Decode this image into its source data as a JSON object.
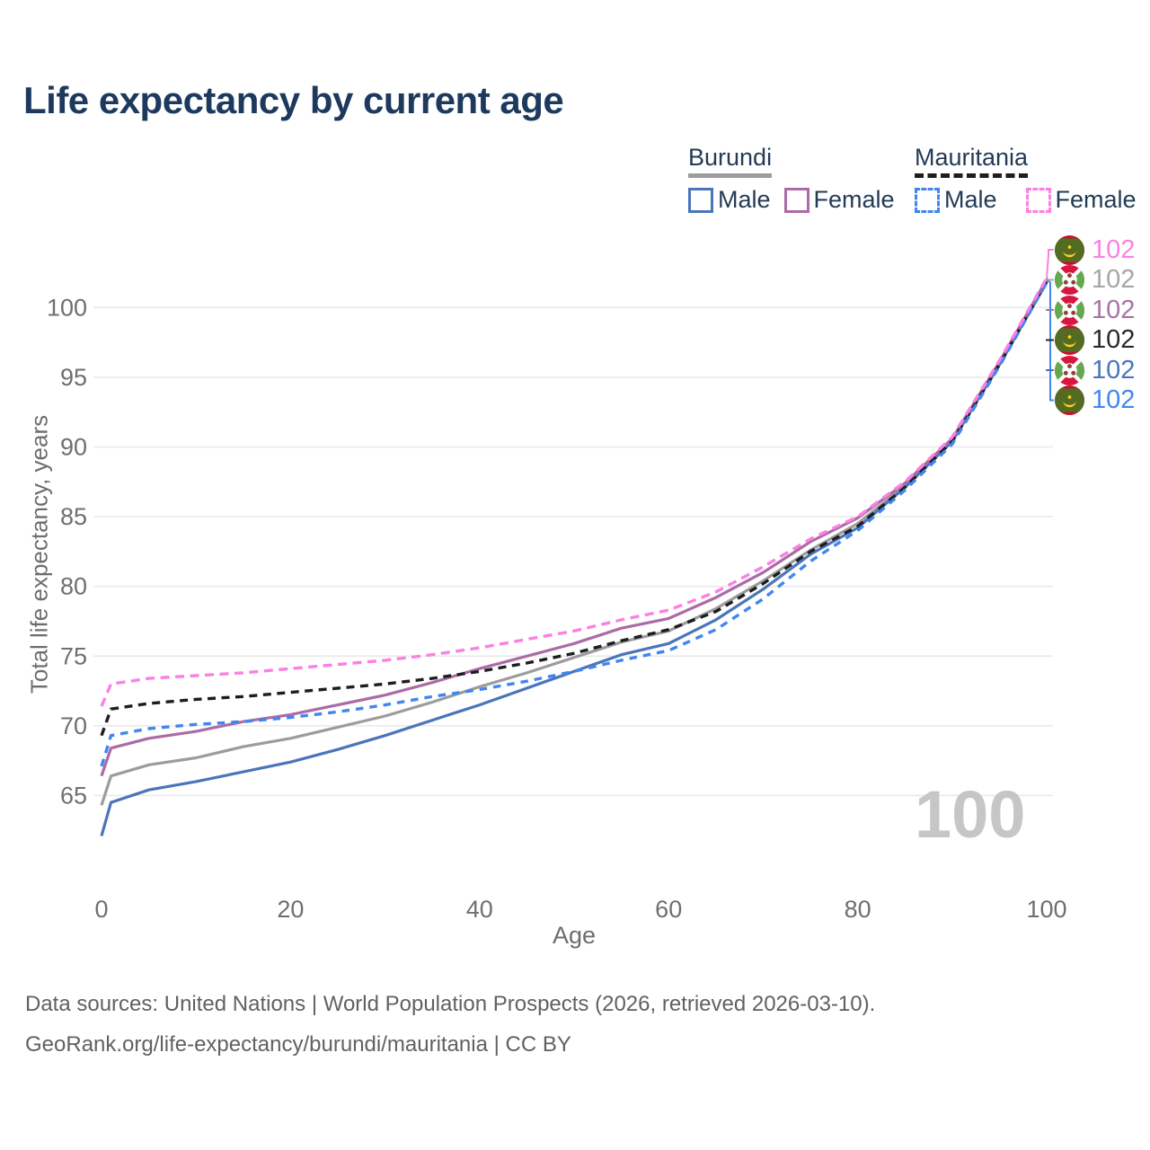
{
  "title": "Life expectancy by current age",
  "watermark_age": "100",
  "legend": {
    "groups": [
      {
        "label": "Burundi",
        "underline_style": "solid",
        "underline_color": "#9c9c9c",
        "items": [
          {
            "label": "Male",
            "color": "#4a75ba",
            "style": "solid"
          },
          {
            "label": "Female",
            "color": "#ac6ba6",
            "style": "solid"
          }
        ]
      },
      {
        "label": "Mauritania",
        "underline_style": "dashed",
        "underline_color": "#1e1e1e",
        "items": [
          {
            "label": "Male",
            "color": "#4186f0",
            "style": "dashed"
          },
          {
            "label": "Female",
            "color": "#fa81e3",
            "style": "dashed"
          }
        ]
      }
    ]
  },
  "right_labels": [
    {
      "series": "Mauritania Female",
      "flag_icon": "mauritania",
      "value": "102",
      "color": "#fa81e3"
    },
    {
      "series": "Burundi Both sexes",
      "flag_icon": "burundi",
      "value": "102",
      "color": "#a6a6a6"
    },
    {
      "series": "Burundi Female",
      "flag_icon": "burundi",
      "value": "102",
      "color": "#a873a6"
    },
    {
      "series": "Mauritania Both sexes",
      "flag_icon": "mauritania",
      "value": "102",
      "color": "#2a2a2a"
    },
    {
      "series": "Burundi Male",
      "flag_icon": "burundi",
      "value": "102",
      "color": "#4a75ba"
    },
    {
      "series": "Mauritania Male",
      "flag_icon": "mauritania",
      "value": "102",
      "color": "#4186f0"
    }
  ],
  "chart_data": {
    "type": "line",
    "title": "Life expectancy by current age",
    "xlabel": "Age",
    "ylabel": "Total life expectancy, years",
    "xlim": [
      0,
      100
    ],
    "ylim": [
      62,
      103.5
    ],
    "xticks": [
      0,
      20,
      40,
      60,
      80,
      100
    ],
    "yticks": [
      65,
      70,
      75,
      80,
      85,
      90,
      95,
      100
    ],
    "grid": "horizontal",
    "legend_position": "top-right",
    "x": [
      0,
      1,
      5,
      10,
      15,
      20,
      25,
      30,
      35,
      40,
      45,
      50,
      55,
      60,
      65,
      70,
      75,
      80,
      85,
      90,
      95,
      100
    ],
    "series": [
      {
        "name": "Burundi Both sexes",
        "country": "Burundi",
        "sex": "both",
        "style": "solid",
        "color": "#9c9c9c",
        "values": [
          64.3,
          66.4,
          67.2,
          67.7,
          68.5,
          69.1,
          69.9,
          70.7,
          71.7,
          72.8,
          73.8,
          74.9,
          76.0,
          76.8,
          78.4,
          80.4,
          82.6,
          84.5,
          87.2,
          90.5,
          96.0,
          101.9
        ]
      },
      {
        "name": "Burundi Male",
        "country": "Burundi",
        "sex": "male",
        "style": "solid",
        "color": "#4a75ba",
        "values": [
          62.1,
          64.5,
          65.4,
          66.0,
          66.7,
          67.4,
          68.3,
          69.3,
          70.4,
          71.5,
          72.7,
          73.9,
          75.1,
          75.9,
          77.6,
          79.8,
          82.3,
          84.2,
          87.1,
          90.4,
          95.9,
          101.8
        ]
      },
      {
        "name": "Burundi Female",
        "country": "Burundi",
        "sex": "female",
        "style": "solid",
        "color": "#ac6ba6",
        "values": [
          66.4,
          68.4,
          69.1,
          69.6,
          70.3,
          70.8,
          71.5,
          72.2,
          73.1,
          74.1,
          75.0,
          75.9,
          77.0,
          77.7,
          79.2,
          81.0,
          83.2,
          84.9,
          87.4,
          90.6,
          96.1,
          102.0
        ]
      },
      {
        "name": "Mauritania Both sexes",
        "country": "Mauritania",
        "sex": "both",
        "style": "dashed",
        "color": "#1e1e1e",
        "values": [
          69.3,
          71.2,
          71.6,
          71.9,
          72.1,
          72.4,
          72.7,
          73.0,
          73.4,
          73.9,
          74.5,
          75.2,
          76.1,
          76.9,
          78.2,
          80.2,
          82.5,
          84.3,
          87.1,
          90.4,
          95.9,
          101.9
        ]
      },
      {
        "name": "Mauritania Male",
        "country": "Mauritania",
        "sex": "male",
        "style": "dashed",
        "color": "#4186f0",
        "values": [
          67.1,
          69.3,
          69.8,
          70.1,
          70.3,
          70.6,
          71.0,
          71.5,
          72.1,
          72.6,
          73.2,
          73.9,
          74.7,
          75.4,
          76.9,
          79.1,
          81.8,
          84.0,
          86.9,
          90.2,
          95.8,
          101.8
        ]
      },
      {
        "name": "Mauritania Female",
        "country": "Mauritania",
        "sex": "female",
        "style": "dashed",
        "color": "#fa81e3",
        "values": [
          71.4,
          73.0,
          73.4,
          73.6,
          73.8,
          74.1,
          74.4,
          74.7,
          75.1,
          75.6,
          76.2,
          76.8,
          77.6,
          78.3,
          79.6,
          81.4,
          83.4,
          85.0,
          87.5,
          90.7,
          96.2,
          102.1
        ]
      }
    ]
  },
  "footer": {
    "line1": "Data sources: United Nations | World Population Prospects (2026, retrieved 2026-03-10).",
    "line2": "GeoRank.org/life-expectancy/burundi/mauritania | CC BY"
  }
}
